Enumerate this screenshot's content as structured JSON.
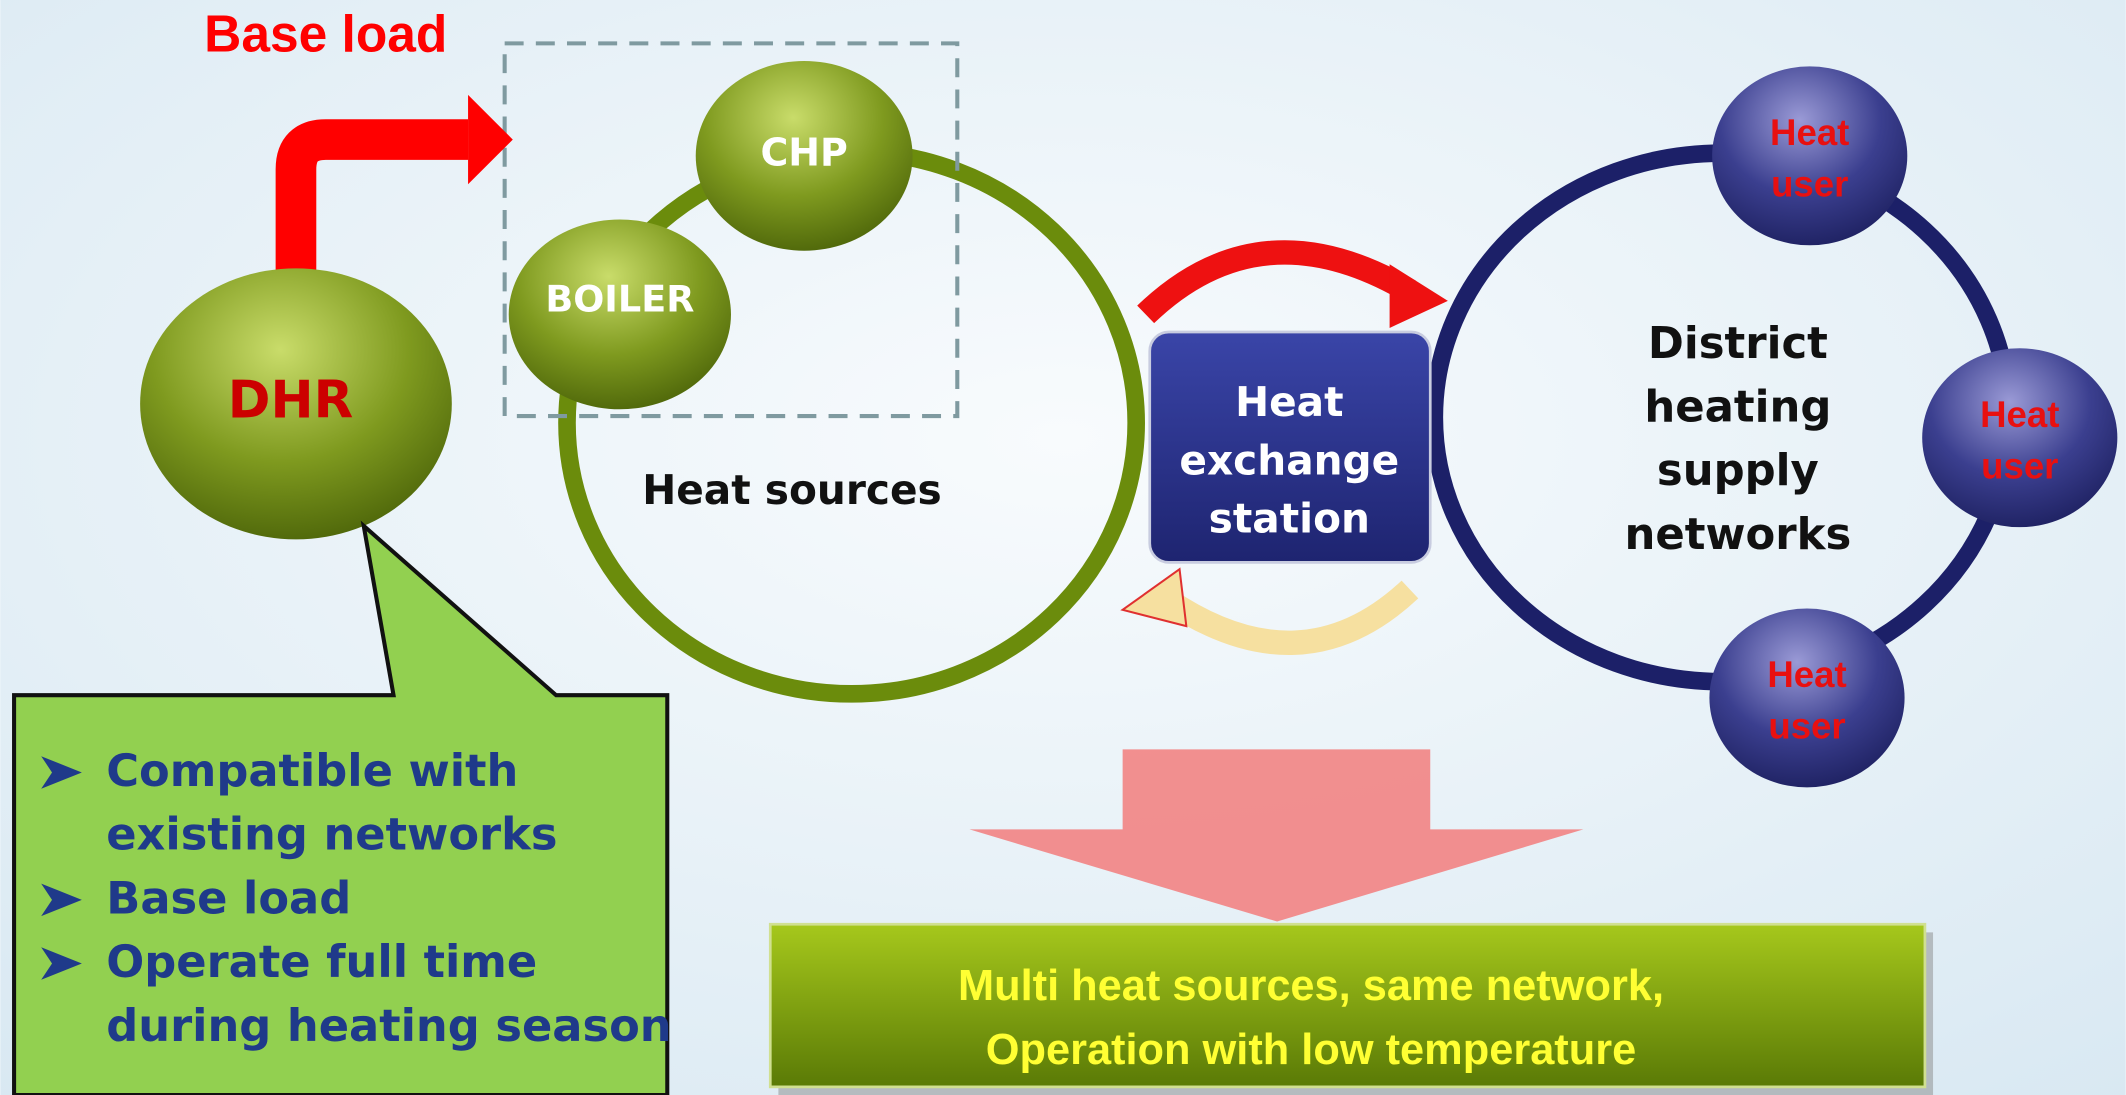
{
  "title": "Base load",
  "nodes": {
    "chp": "CHP",
    "boiler": "BOILER",
    "dhr": "DHR",
    "heat_sources": "Heat sources",
    "exchange": [
      "Heat",
      "exchange",
      "station"
    ],
    "network": [
      "District",
      "heating",
      "supply",
      "networks"
    ],
    "users": [
      [
        "Heat",
        "user"
      ],
      [
        "Heat",
        "user"
      ],
      [
        "Heat",
        "user"
      ]
    ]
  },
  "callout": {
    "items": [
      [
        "Compatible with",
        "existing networks"
      ],
      [
        "Base load"
      ],
      [
        "Operate full time",
        "during heating season"
      ]
    ]
  },
  "banner": {
    "lines": [
      "Multi heat sources, same network,",
      "Operation with low temperature"
    ]
  }
}
